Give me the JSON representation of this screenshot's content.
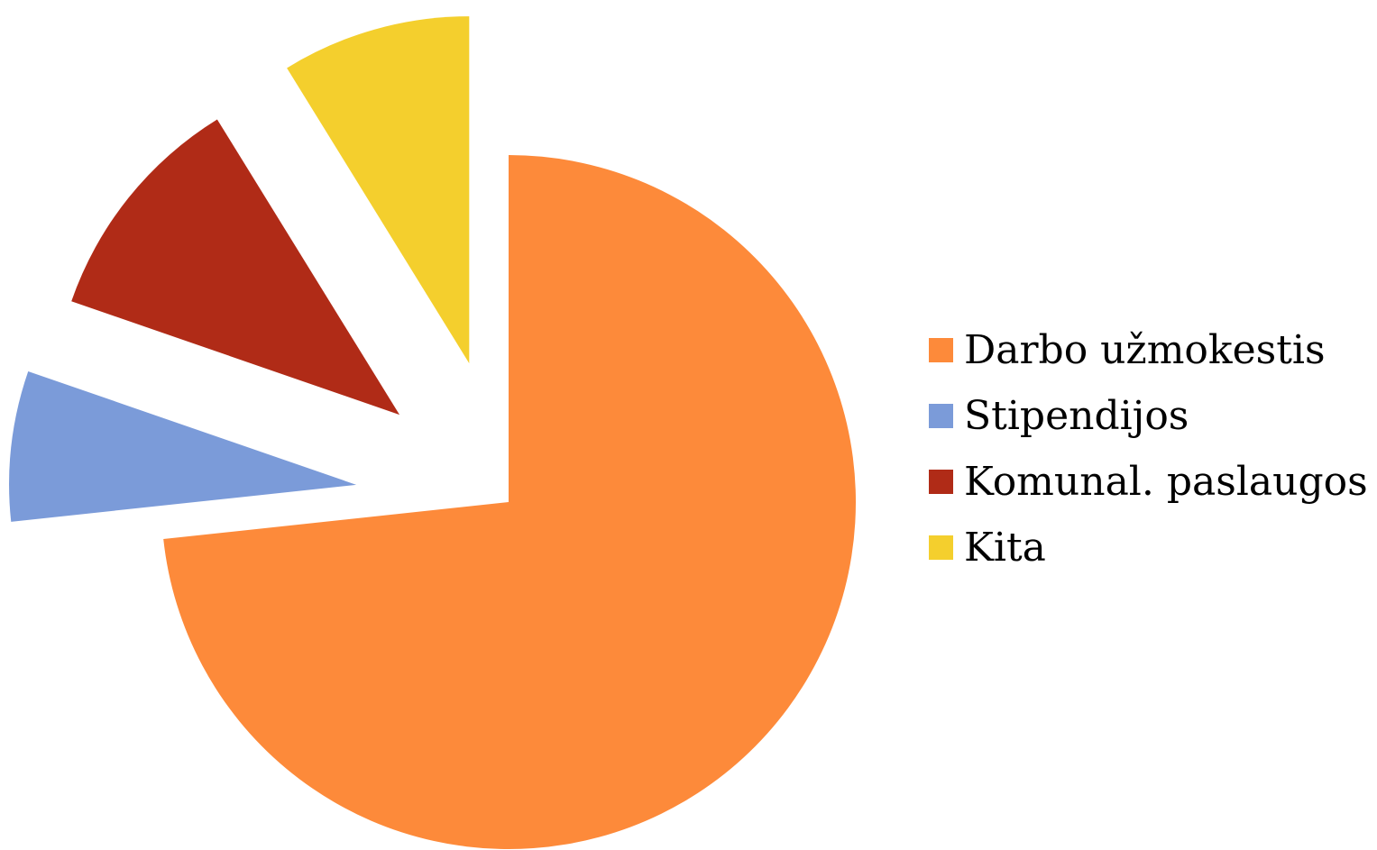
{
  "chart_data": {
    "type": "pie",
    "title": "",
    "exploded": true,
    "legend_position": "right",
    "slices": [
      {
        "label": "Darbo užmokestis",
        "value": 73.3,
        "color": "#FD8A3A"
      },
      {
        "label": "Stipendijos",
        "value": 7.0,
        "color": "#7B9BD9"
      },
      {
        "label": "Komunal. paslaugos",
        "value": 10.9,
        "color": "#B02B17"
      },
      {
        "label": "Kita",
        "value": 8.8,
        "color": "#F4CF2D"
      }
    ]
  }
}
